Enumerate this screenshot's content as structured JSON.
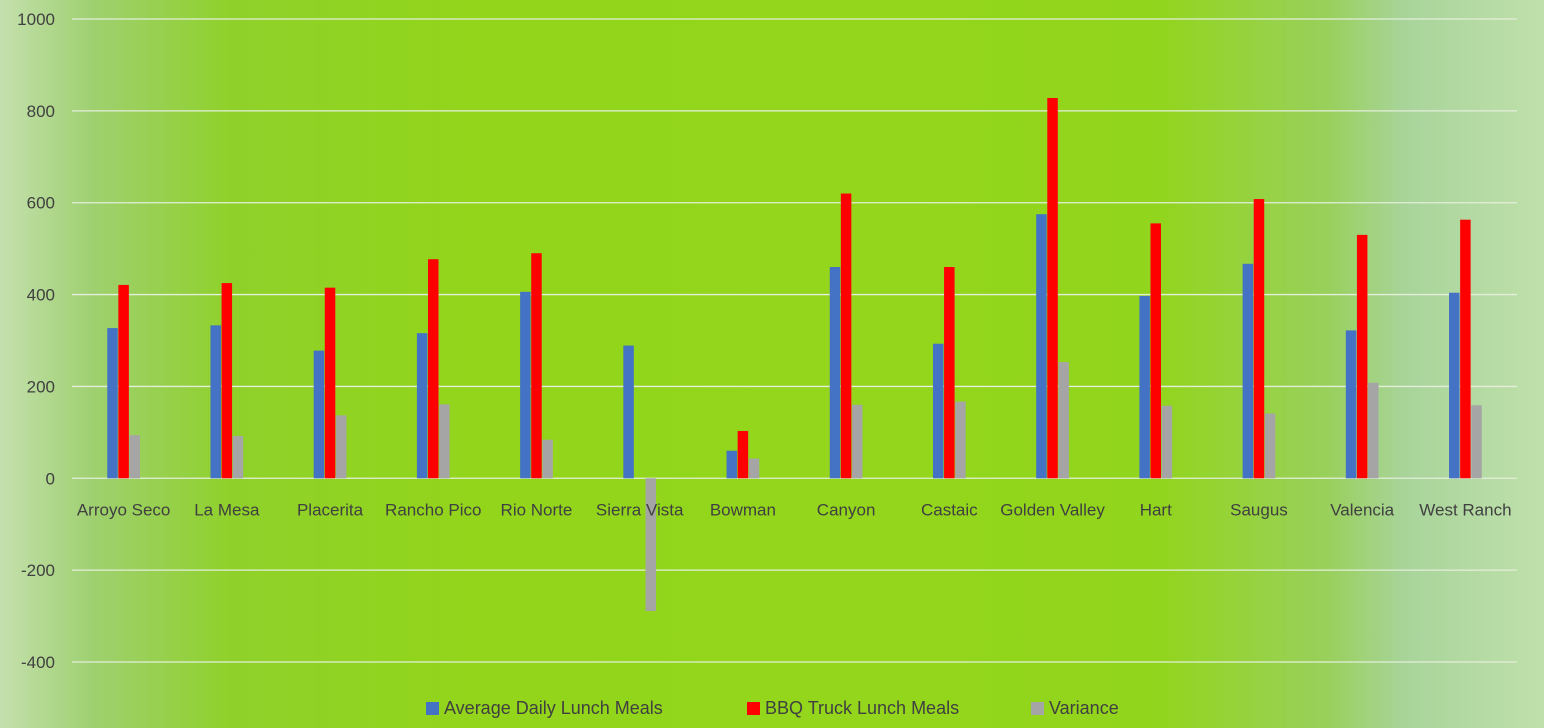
{
  "chart_data": {
    "type": "bar",
    "title": "",
    "xlabel": "",
    "ylabel": "",
    "ylim": [
      -400,
      1000
    ],
    "yticks": [
      -400,
      -200,
      0,
      200,
      400,
      600,
      800,
      1000
    ],
    "grid": true,
    "legend_position": "bottom",
    "categories": [
      "Arroyo Seco",
      "La Mesa",
      "Placerita",
      "Rancho Pico",
      "Rio Norte",
      "Sierra Vista",
      "Bowman",
      "Canyon",
      "Castaic",
      "Golden Valley",
      "Hart",
      "Saugus",
      "Valencia",
      "West Ranch"
    ],
    "series": [
      {
        "name": "Average Daily Lunch Meals",
        "color": "#4472c4",
        "values": [
          327,
          333,
          278,
          316,
          406,
          289,
          60,
          460,
          293,
          575,
          397,
          467,
          322,
          404
        ]
      },
      {
        "name": "BBQ Truck Lunch Meals",
        "color": "#ff0000",
        "values": [
          421,
          425,
          415,
          477,
          490,
          0,
          103,
          620,
          460,
          828,
          555,
          608,
          530,
          563
        ]
      },
      {
        "name": "Variance",
        "color": "#a5a5a5",
        "values": [
          94,
          92,
          137,
          161,
          84,
          -289,
          43,
          160,
          167,
          253,
          158,
          141,
          208,
          159
        ]
      }
    ]
  }
}
